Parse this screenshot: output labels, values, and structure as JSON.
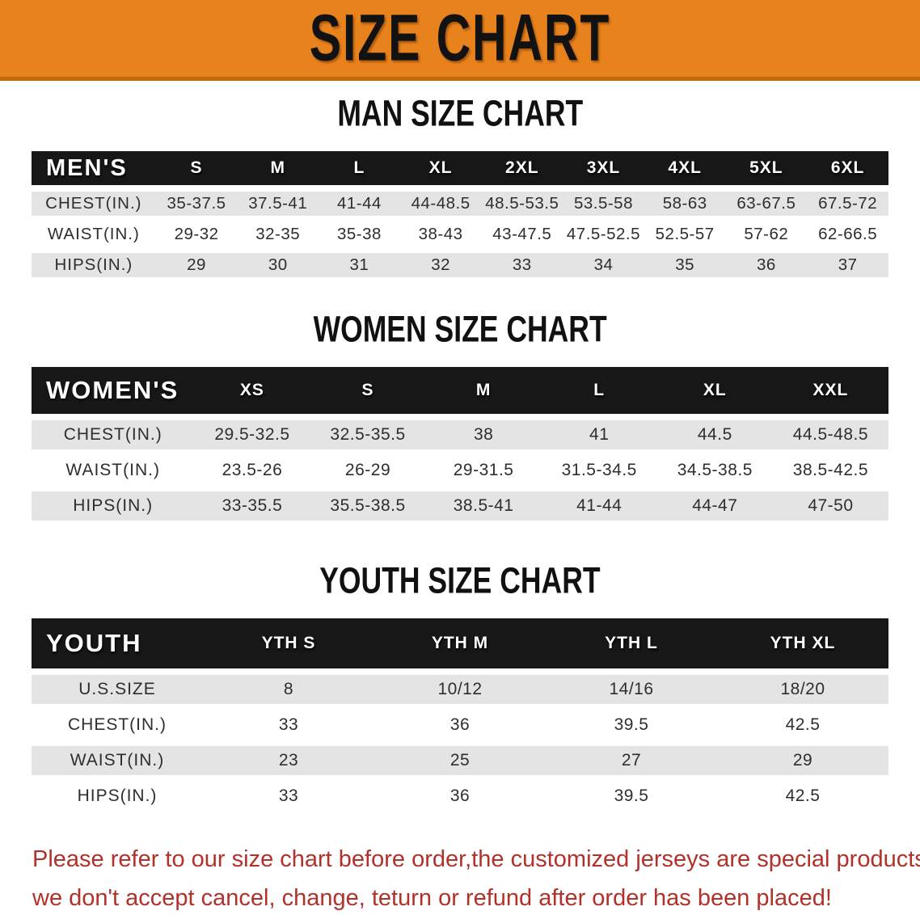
{
  "banner": {
    "title": "SIZE CHART",
    "bg_color": "#E8821C",
    "bottom_edge_color": "#C06A10",
    "text_color": "#121212"
  },
  "colors": {
    "table_header_bg": "#171717",
    "table_header_text": "#FFFFFF",
    "row_alt_bg": "#E4E4E4",
    "row_plain_bg": "#FFFFFF",
    "body_text": "#2E2E2E",
    "disclaimer_red": "#B2312B"
  },
  "sections": [
    {
      "id": "men",
      "heading": "MAN SIZE CHART",
      "table": {
        "corner_label": "MEN'S",
        "size_headers": [
          "S",
          "M",
          "L",
          "XL",
          "2XL",
          "3XL",
          "4XL",
          "5XL",
          "6XL"
        ],
        "rows": [
          {
            "label": "CHEST(IN.)",
            "values": [
              "35-37.5",
              "37.5-41",
              "41-44",
              "44-48.5",
              "48.5-53.5",
              "53.5-58",
              "58-63",
              "63-67.5",
              "67.5-72"
            ]
          },
          {
            "label": "WAIST(IN.)",
            "values": [
              "29-32",
              "32-35",
              "35-38",
              "38-43",
              "43-47.5",
              "47.5-52.5",
              "52.5-57",
              "57-62",
              "62-66.5"
            ]
          },
          {
            "label": "HIPS(IN.)",
            "values": [
              "29",
              "30",
              "31",
              "32",
              "33",
              "34",
              "35",
              "36",
              "37"
            ]
          }
        ]
      }
    },
    {
      "id": "women",
      "heading": "WOMEN SIZE CHART",
      "table": {
        "corner_label": "WOMEN'S",
        "size_headers": [
          "XS",
          "S",
          "M",
          "L",
          "XL",
          "XXL"
        ],
        "rows": [
          {
            "label": "CHEST(IN.)",
            "values": [
              "29.5-32.5",
              "32.5-35.5",
              "38",
              "41",
              "44.5",
              "44.5-48.5"
            ]
          },
          {
            "label": "WAIST(IN.)",
            "values": [
              "23.5-26",
              "26-29",
              "29-31.5",
              "31.5-34.5",
              "34.5-38.5",
              "38.5-42.5"
            ]
          },
          {
            "label": "HIPS(IN.)",
            "values": [
              "33-35.5",
              "35.5-38.5",
              "38.5-41",
              "41-44",
              "44-47",
              "47-50"
            ]
          }
        ]
      }
    },
    {
      "id": "youth",
      "heading": "YOUTH SIZE CHART",
      "table": {
        "corner_label": "YOUTH",
        "size_headers": [
          "YTH S",
          "YTH M",
          "YTH L",
          "YTH XL"
        ],
        "rows": [
          {
            "label": "U.S.SIZE",
            "values": [
              "8",
              "10/12",
              "14/16",
              "18/20"
            ]
          },
          {
            "label": "CHEST(IN.)",
            "values": [
              "33",
              "36",
              "39.5",
              "42.5"
            ]
          },
          {
            "label": "WAIST(IN.)",
            "values": [
              "23",
              "25",
              "27",
              "29"
            ]
          },
          {
            "label": "HIPS(IN.)",
            "values": [
              "33",
              "36",
              "39.5",
              "42.5"
            ]
          }
        ]
      }
    }
  ],
  "disclaimer": {
    "line1": "Please refer to our size chart before order,the customized jerseys are special products,",
    "line2": "we don't accept cancel, change, teturn or refund after order has been placed!"
  }
}
